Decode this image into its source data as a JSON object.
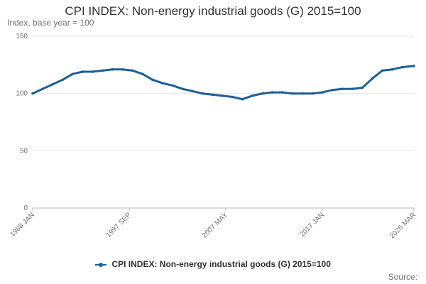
{
  "chart_data": {
    "type": "line",
    "title": "CPI INDEX: Non-energy industrial goods (G) 2015=100",
    "ylabel": "Index, base year = 100",
    "ylim": [
      0,
      150
    ],
    "y_ticks": [
      0,
      50,
      100,
      150
    ],
    "x_ticks": [
      "1988 JAN",
      "1997 SEP",
      "2007 MAY",
      "2017 JAN",
      "2026 MAR"
    ],
    "x_tick_years": [
      1988.0,
      1997.67,
      2007.33,
      2017.0,
      2026.17
    ],
    "x_range": [
      1988.0,
      2026.17
    ],
    "series": [
      {
        "name": "CPI INDEX: Non-energy industrial goods (G) 2015=100",
        "color": "#206095",
        "x": [
          1988.0,
          1989.0,
          1990.0,
          1991.0,
          1992.0,
          1993.0,
          1994.0,
          1995.0,
          1996.0,
          1997.0,
          1998.0,
          1999.0,
          2000.0,
          2001.0,
          2002.0,
          2003.0,
          2004.0,
          2005.0,
          2006.0,
          2007.0,
          2008.0,
          2009.0,
          2010.0,
          2011.0,
          2012.0,
          2013.0,
          2014.0,
          2015.0,
          2016.0,
          2017.0,
          2018.0,
          2019.0,
          2020.0,
          2021.0,
          2022.0,
          2023.0,
          2024.0,
          2025.0,
          2026.17
        ],
        "values": [
          100,
          104,
          108,
          112,
          117,
          119,
          119,
          120,
          121,
          121,
          120,
          117,
          112,
          109,
          107,
          104,
          102,
          100,
          99,
          98,
          97,
          95,
          98,
          100,
          101,
          101,
          100,
          100,
          100,
          101,
          103,
          104,
          104,
          105,
          113,
          120,
          121,
          123,
          124
        ]
      }
    ]
  },
  "legend_label": "CPI INDEX: Non-energy industrial goods (G) 2015=100",
  "source_label": "Source:"
}
